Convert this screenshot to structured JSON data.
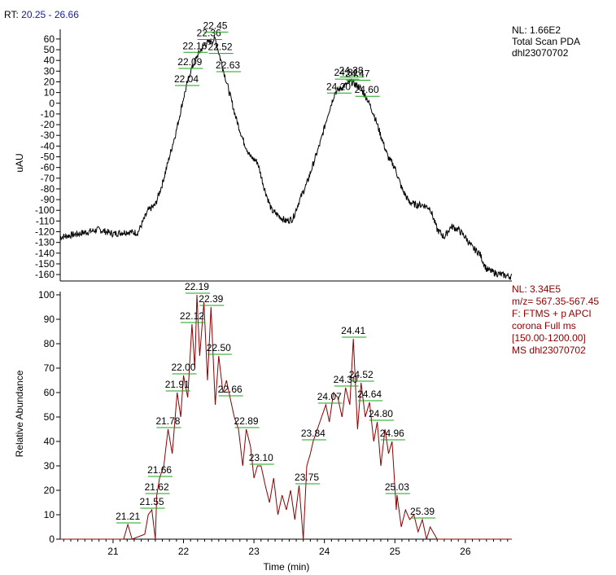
{
  "header": {
    "rt_label": "RT:",
    "rt_range": "20.25 - 26.66"
  },
  "colors": {
    "header_blue": "#1a1aa0",
    "trace_pda": "#000000",
    "trace_ms": "#8b0000",
    "peak_tick": "#19a319",
    "ms_info": "#8b0000"
  },
  "pda_info": [
    "NL: 1.66E2",
    "Total Scan  PDA",
    "dhl23070702"
  ],
  "ms_info": [
    "NL: 3.34E5",
    "m/z= 567.35-567.45",
    "F: FTMS + p APCI",
    "corona Full ms",
    "[150.00-1200.00]",
    "MS dhl23070702"
  ],
  "chart_data": [
    {
      "type": "line",
      "name": "pda",
      "ylabel": "uAU",
      "xlabel": "",
      "xlim": [
        20.25,
        26.66
      ],
      "ylim": [
        -166,
        66
      ],
      "yticks": [
        60,
        50,
        40,
        30,
        20,
        10,
        0,
        -10,
        -20,
        -30,
        -40,
        -50,
        -60,
        -70,
        -80,
        -90,
        -100,
        -110,
        -120,
        -130,
        -140,
        -150,
        -160
      ],
      "x": [
        20.25,
        20.5,
        20.8,
        21.0,
        21.2,
        21.35,
        21.5,
        21.6,
        21.7,
        21.8,
        21.9,
        22.0,
        22.1,
        22.2,
        22.3,
        22.45,
        22.55,
        22.65,
        22.75,
        22.85,
        22.95,
        23.05,
        23.15,
        23.25,
        23.35,
        23.45,
        23.55,
        23.65,
        23.75,
        23.85,
        23.95,
        24.05,
        24.15,
        24.25,
        24.38,
        24.5,
        24.6,
        24.7,
        24.8,
        24.9,
        25.0,
        25.1,
        25.2,
        25.3,
        25.4,
        25.5,
        25.6,
        25.7,
        25.8,
        25.9,
        26.0,
        26.1,
        26.2,
        26.3,
        26.4,
        26.5,
        26.66
      ],
      "y": [
        -125,
        -122,
        -118,
        -122,
        -120,
        -121,
        -100,
        -95,
        -75,
        -50,
        -25,
        5,
        30,
        45,
        55,
        60,
        35,
        10,
        -15,
        -35,
        -50,
        -55,
        -80,
        -100,
        -105,
        -110,
        -108,
        -90,
        -75,
        -55,
        -35,
        -10,
        10,
        15,
        20,
        15,
        5,
        -10,
        -30,
        -50,
        -60,
        -80,
        -92,
        -95,
        -95,
        -98,
        -118,
        -125,
        -115,
        -118,
        -125,
        -135,
        -140,
        -155,
        -158,
        -160,
        -162
      ],
      "peak_labels": [
        {
          "x": 22.36,
          "y": 58,
          "text": "22.36"
        },
        {
          "x": 22.45,
          "y": 65,
          "text": "22.45"
        },
        {
          "x": 22.16,
          "y": 46,
          "text": "22.16"
        },
        {
          "x": 22.52,
          "y": 45,
          "text": "22.52"
        },
        {
          "x": 22.09,
          "y": 31,
          "text": "22.09"
        },
        {
          "x": 22.63,
          "y": 28,
          "text": "22.63"
        },
        {
          "x": 22.04,
          "y": 15,
          "text": "22.04"
        },
        {
          "x": 24.31,
          "y": 21,
          "text": "24.31"
        },
        {
          "x": 24.38,
          "y": 23,
          "text": "24.38"
        },
        {
          "x": 24.47,
          "y": 20,
          "text": "24.47"
        },
        {
          "x": 24.2,
          "y": 8,
          "text": "24.20"
        },
        {
          "x": 24.6,
          "y": 5,
          "text": "24.60"
        }
      ]
    },
    {
      "type": "line",
      "name": "ms",
      "ylabel": "Relative Abundance",
      "xlabel": "Time (min)",
      "xlim": [
        20.25,
        26.66
      ],
      "ylim": [
        0,
        100
      ],
      "xticks": [
        21,
        22,
        23,
        24,
        25,
        26
      ],
      "yticks": [
        0,
        10,
        20,
        30,
        40,
        50,
        60,
        70,
        80,
        90,
        100
      ],
      "x": [
        20.25,
        21.15,
        21.21,
        21.27,
        21.45,
        21.5,
        21.55,
        21.6,
        21.62,
        21.66,
        21.72,
        21.78,
        21.84,
        21.91,
        21.96,
        22.0,
        22.06,
        22.12,
        22.16,
        22.19,
        22.23,
        22.29,
        22.34,
        22.39,
        22.45,
        22.5,
        22.56,
        22.61,
        22.66,
        22.72,
        22.78,
        22.84,
        22.89,
        22.95,
        23.0,
        23.05,
        23.1,
        23.16,
        23.22,
        23.28,
        23.34,
        23.4,
        23.46,
        23.52,
        23.58,
        23.64,
        23.7,
        23.75,
        23.8,
        23.84,
        23.9,
        23.96,
        24.02,
        24.07,
        24.13,
        24.19,
        24.25,
        24.3,
        24.36,
        24.41,
        24.47,
        24.52,
        24.58,
        24.64,
        24.7,
        24.75,
        24.8,
        24.86,
        24.91,
        24.96,
        25.02,
        25.03,
        25.09,
        25.15,
        25.21,
        25.27,
        25.33,
        25.39,
        25.45,
        25.5,
        25.6,
        26.66
      ],
      "y": [
        0,
        0,
        6,
        0,
        2,
        10,
        12,
        0,
        18,
        25,
        30,
        45,
        35,
        60,
        50,
        67,
        58,
        88,
        70,
        100,
        75,
        97,
        65,
        95,
        55,
        75,
        60,
        65,
        58,
        50,
        45,
        30,
        45,
        38,
        25,
        30,
        30,
        22,
        15,
        25,
        10,
        18,
        12,
        20,
        8,
        22,
        0,
        30,
        35,
        40,
        45,
        50,
        55,
        48,
        60,
        58,
        50,
        62,
        55,
        82,
        45,
        64,
        50,
        56,
        40,
        48,
        30,
        45,
        35,
        40,
        12,
        18,
        5,
        12,
        8,
        10,
        3,
        8,
        0,
        5,
        0,
        0
      ],
      "peak_labels": [
        {
          "x": 21.21,
          "y": 6,
          "text": "21.21"
        },
        {
          "x": 21.55,
          "y": 12,
          "text": "21.55"
        },
        {
          "x": 21.62,
          "y": 18,
          "text": "21.62"
        },
        {
          "x": 21.66,
          "y": 25,
          "text": "21.66"
        },
        {
          "x": 21.78,
          "y": 45,
          "text": "21.78"
        },
        {
          "x": 21.91,
          "y": 60,
          "text": "21.91"
        },
        {
          "x": 22.0,
          "y": 67,
          "text": "22.00"
        },
        {
          "x": 22.12,
          "y": 88,
          "text": "22.12"
        },
        {
          "x": 22.19,
          "y": 100,
          "text": "22.19"
        },
        {
          "x": 22.39,
          "y": 95,
          "text": "22.39"
        },
        {
          "x": 22.5,
          "y": 75,
          "text": "22.50"
        },
        {
          "x": 22.66,
          "y": 58,
          "text": "22.66"
        },
        {
          "x": 22.89,
          "y": 45,
          "text": "22.89"
        },
        {
          "x": 23.1,
          "y": 30,
          "text": "23.10"
        },
        {
          "x": 23.75,
          "y": 22,
          "text": "23.75"
        },
        {
          "x": 23.84,
          "y": 40,
          "text": "23.84"
        },
        {
          "x": 24.07,
          "y": 55,
          "text": "24.07"
        },
        {
          "x": 24.3,
          "y": 62,
          "text": "24.30"
        },
        {
          "x": 24.41,
          "y": 82,
          "text": "24.41"
        },
        {
          "x": 24.52,
          "y": 64,
          "text": "24.52"
        },
        {
          "x": 24.64,
          "y": 56,
          "text": "24.64"
        },
        {
          "x": 24.8,
          "y": 48,
          "text": "24.80"
        },
        {
          "x": 24.96,
          "y": 40,
          "text": "24.96"
        },
        {
          "x": 25.03,
          "y": 18,
          "text": "25.03"
        },
        {
          "x": 25.39,
          "y": 8,
          "text": "25.39"
        }
      ]
    }
  ]
}
